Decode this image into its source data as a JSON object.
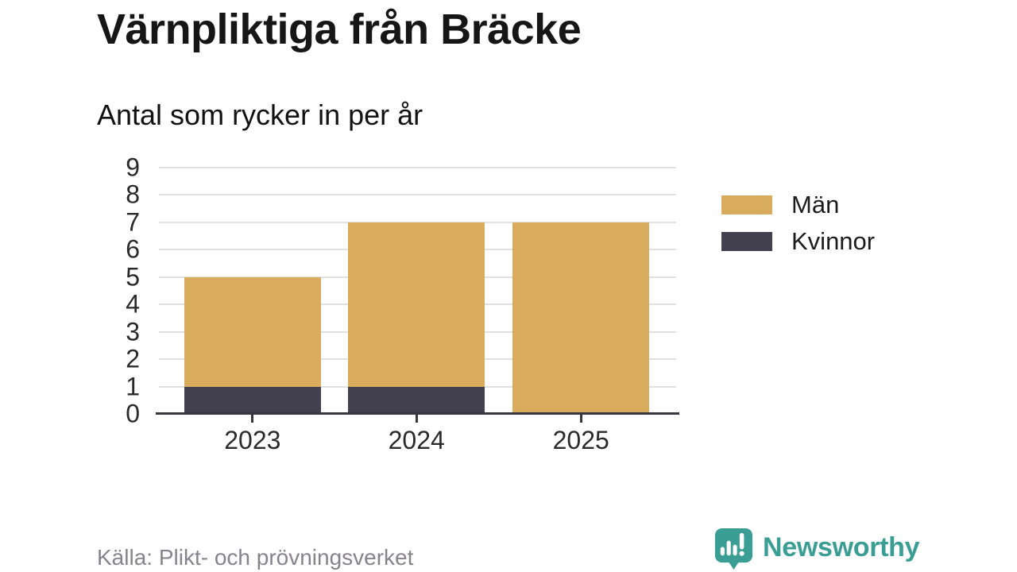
{
  "chart_data": {
    "type": "bar",
    "stacked": true,
    "title": "Värnpliktiga från Bräcke",
    "subtitle": "Antal som rycker in per år",
    "categories": [
      "2023",
      "2024",
      "2025"
    ],
    "series": [
      {
        "name": "Män",
        "color": "#D9AB5C",
        "values": [
          4,
          6,
          7
        ]
      },
      {
        "name": "Kvinnor",
        "color": "#434050",
        "values": [
          1,
          1,
          0
        ]
      }
    ],
    "stack_totals": [
      5,
      7,
      7
    ],
    "xlabel": "",
    "ylabel": "",
    "ylim": [
      0,
      9
    ],
    "yticks": [
      0,
      1,
      2,
      3,
      4,
      5,
      6,
      7,
      8,
      9
    ],
    "grid": true,
    "legend_position": "right"
  },
  "footer": {
    "source": "Källa: Plikt- och prövningsverket",
    "brand": "Newsworthy",
    "brand_color": "#3A9E94",
    "logo_icon": "speech-bubble-bar-chart-icon"
  }
}
